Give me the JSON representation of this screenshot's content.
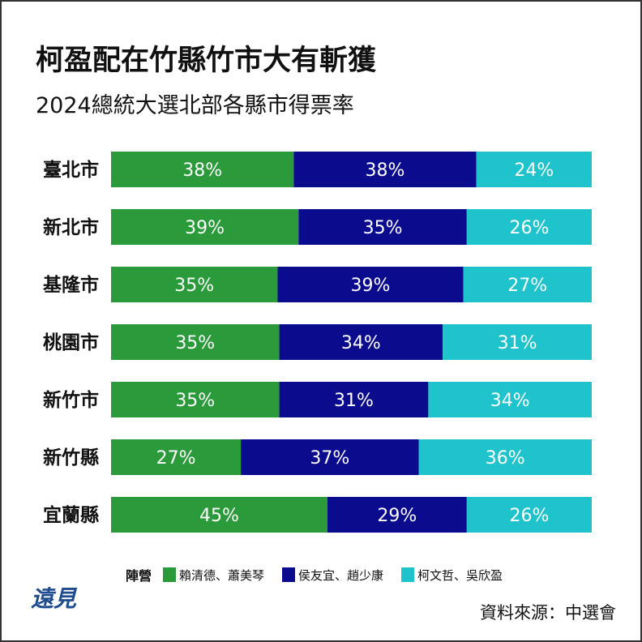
{
  "title": "柯盈配在竹縣竹市大有斬獲",
  "subtitle": "2024總統大選北部各縣市得票率",
  "chart_data": {
    "type": "bar",
    "orientation": "horizontal",
    "stacked": true,
    "categories": [
      "臺北市",
      "新北市",
      "基隆市",
      "桃園市",
      "新竹市",
      "新竹縣",
      "宜蘭縣"
    ],
    "series": [
      {
        "name": "賴清德、蕭美琴",
        "color": "#2b9a3b",
        "values": [
          38,
          39,
          35,
          35,
          35,
          27,
          45
        ]
      },
      {
        "name": "侯友宜、趙少康",
        "color": "#0b0b8e",
        "values": [
          38,
          35,
          39,
          34,
          31,
          37,
          29
        ]
      },
      {
        "name": "柯文哲、吳欣盈",
        "color": "#1ec3cb",
        "values": [
          24,
          26,
          27,
          31,
          34,
          36,
          26
        ]
      }
    ],
    "value_suffix": "%",
    "xlim": [
      0,
      100
    ],
    "grid": false,
    "legend_title": "陣營",
    "legend_position": "bottom"
  },
  "logo_text": "遠見",
  "source": "資料來源：中選會"
}
